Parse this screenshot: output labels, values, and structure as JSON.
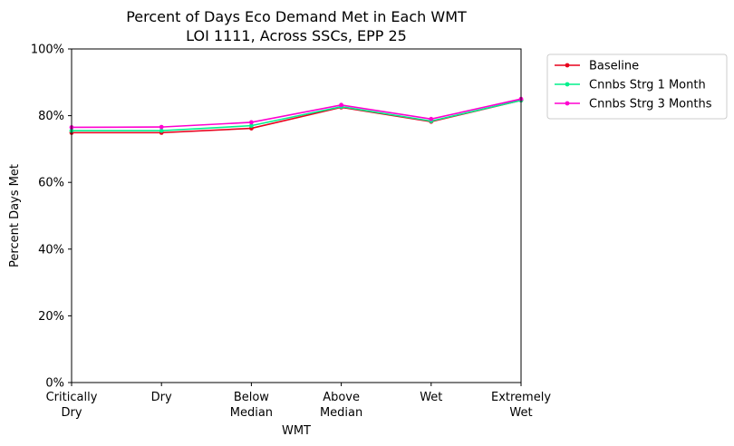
{
  "chart_data": {
    "type": "line",
    "title_line1": "Percent of Days Eco Demand Met in Each WMT",
    "title_line2": "LOI 1111, Across SSCs, EPP 25",
    "xlabel": "WMT",
    "ylabel": "Percent Days Met",
    "categories": [
      [
        "Critically",
        "Dry"
      ],
      [
        "Dry"
      ],
      [
        "Below",
        "Median"
      ],
      [
        "Above",
        "Median"
      ],
      [
        "Wet"
      ],
      [
        "Extremely",
        "Wet"
      ]
    ],
    "yticks": [
      "0%",
      "20%",
      "40%",
      "60%",
      "80%",
      "100%"
    ],
    "ylim": [
      0,
      100
    ],
    "grid": false,
    "legend_position": "outside-top-right",
    "series": [
      {
        "name": "Baseline",
        "color": "#e8001c",
        "values": [
          74.9,
          74.9,
          76.2,
          82.5,
          78.2,
          84.6
        ]
      },
      {
        "name": "Cnnbs Strg 1 Month",
        "color": "#00f08c",
        "values": [
          75.5,
          75.5,
          77.0,
          82.7,
          78.4,
          84.6
        ]
      },
      {
        "name": "Cnnbs Strg 3 Months",
        "color": "#ff00d0",
        "values": [
          76.5,
          76.6,
          78.0,
          83.2,
          79.0,
          85.0
        ]
      }
    ]
  }
}
